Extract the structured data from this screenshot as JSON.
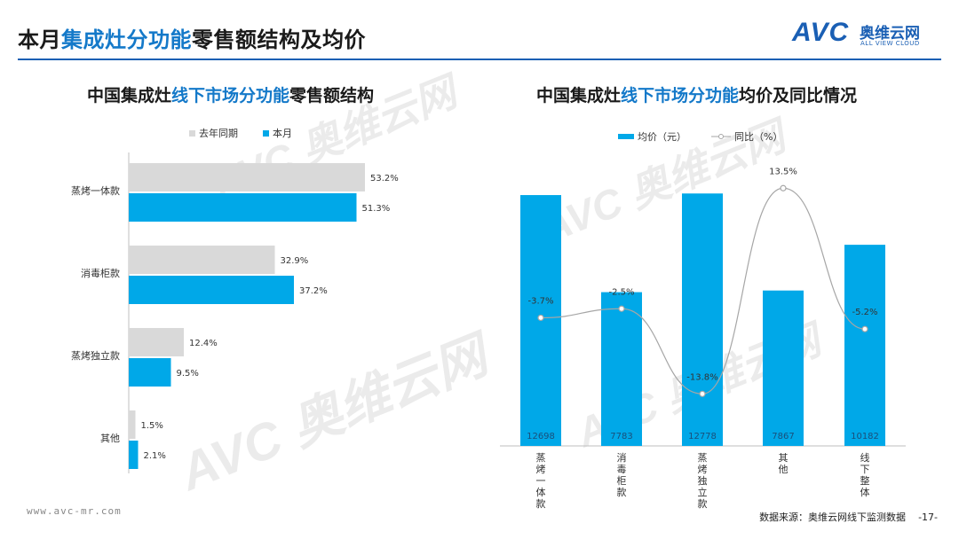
{
  "header": {
    "title_prefix": "本月",
    "title_highlight": "集成灶分功能",
    "title_suffix": "零售额结构及均价",
    "logo_mark": "AVC",
    "logo_cn": "奥维云网",
    "logo_en": "ALL VIEW CLOUD"
  },
  "left_chart": {
    "title_prefix": "中国集成灶",
    "title_highlight": "线下市场分功能",
    "title_suffix": "零售额结构",
    "legend": {
      "last_year": "去年同期",
      "this_month": "本月"
    }
  },
  "right_chart": {
    "title_prefix": "中国集成灶",
    "title_highlight": "线下市场分功能",
    "title_suffix": "均价及同比情况",
    "legend": {
      "price": "均价（元）",
      "yoy": "同比（%）"
    }
  },
  "footer": {
    "website": "www.avc-mr.com",
    "source": "数据来源：奥维云网线下监测数据",
    "page": "-17-"
  },
  "colors": {
    "accent": "#00a8e8",
    "gray": "#d9d9d9",
    "brand": "#1a5fb4"
  },
  "chart_data": [
    {
      "type": "bar",
      "orientation": "horizontal",
      "categories": [
        "蒸烤一体款",
        "消毒柜款",
        "蒸烤独立款",
        "其他"
      ],
      "series": [
        {
          "name": "去年同期",
          "values": [
            53.2,
            32.9,
            12.4,
            1.5
          ],
          "labels": [
            "53.2%",
            "32.9%",
            "12.4%",
            "1.5%"
          ],
          "color": "#d9d9d9"
        },
        {
          "name": "本月",
          "values": [
            51.3,
            37.2,
            9.5,
            2.1
          ],
          "labels": [
            "51.3%",
            "37.2%",
            "9.5%",
            "2.1%"
          ],
          "color": "#00a8e8"
        }
      ],
      "xlim": [
        0,
        60
      ],
      "legend_position": "top"
    },
    {
      "type": "bar",
      "categories": [
        "蒸烤一体款",
        "消毒柜款",
        "蒸烤独立款",
        "其他",
        "线下整体"
      ],
      "series": [
        {
          "name": "均价（元）",
          "type": "bar",
          "values": [
            12698,
            7783,
            12778,
            7867,
            10182
          ],
          "color": "#00a8e8"
        },
        {
          "name": "同比（%）",
          "type": "line",
          "values": [
            -3.7,
            -2.5,
            -13.8,
            13.5,
            -5.2
          ],
          "labels": [
            "-3.7%",
            "-2.5%",
            "-13.8%",
            "13.5%",
            "-5.2%"
          ],
          "color": "#a6a6a6"
        }
      ],
      "ylim_bar": [
        0,
        14000
      ],
      "ylim_line": [
        -16,
        16
      ],
      "legend_position": "top"
    }
  ]
}
